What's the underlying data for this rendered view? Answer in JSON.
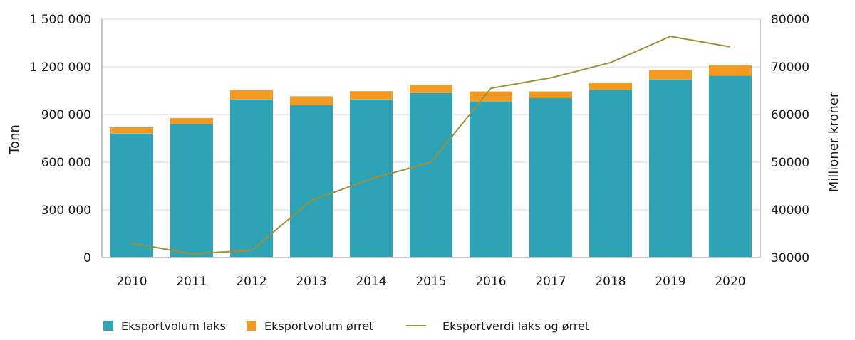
{
  "chart_data": {
    "type": "bar",
    "stacked": true,
    "categories": [
      "2010",
      "2011",
      "2012",
      "2013",
      "2014",
      "2015",
      "2016",
      "2017",
      "2018",
      "2019",
      "2020"
    ],
    "series": [
      {
        "name": "Eksportvolum laks",
        "type": "bar",
        "axis": "left",
        "color": "#2ea3b5",
        "values": [
          780000,
          840000,
          995000,
          960000,
          995000,
          1035000,
          980000,
          1005000,
          1055000,
          1120000,
          1145000
        ]
      },
      {
        "name": "Eksportvolum ørret",
        "type": "bar",
        "axis": "left",
        "color": "#f39a22",
        "values": [
          40000,
          38000,
          58000,
          55000,
          52000,
          52000,
          65000,
          40000,
          47000,
          60000,
          68000
        ]
      },
      {
        "name": "Eksportverdi laks og ørret",
        "type": "line",
        "axis": "right",
        "color": "#9e8f38",
        "values": [
          33000,
          30800,
          31500,
          42000,
          46500,
          50000,
          65500,
          67700,
          70900,
          76400,
          74200
        ]
      }
    ],
    "ylabel": "Tonn",
    "ylabel_right": "Millioner kroner",
    "ylim": [
      0,
      1500000
    ],
    "ylim_right": [
      30000,
      80000
    ],
    "yticks": [
      "0",
      "300 000",
      "600 000",
      "900 000",
      "1 200 000",
      "1 500 000"
    ],
    "yticks_right": [
      "30000",
      "40000",
      "50000",
      "60000",
      "70000",
      "80000"
    ],
    "grid": true,
    "legend": "bottom"
  }
}
